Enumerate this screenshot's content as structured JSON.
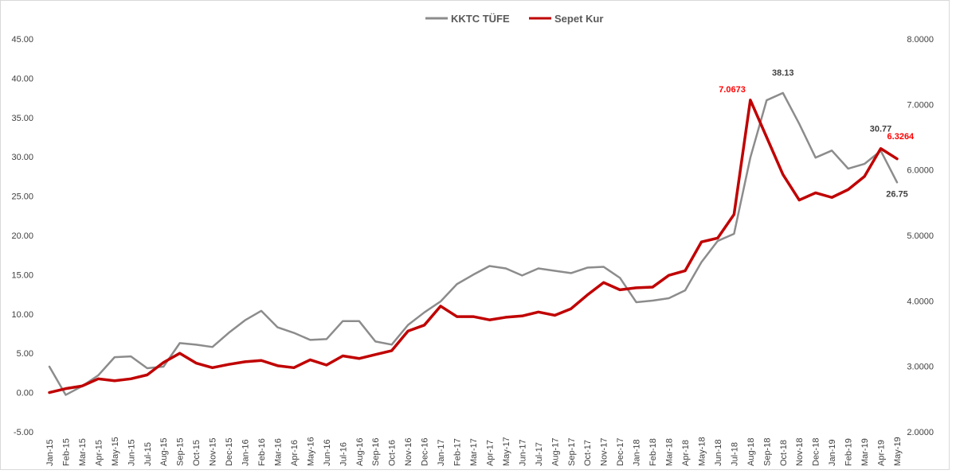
{
  "chart_data": {
    "type": "line",
    "title": "",
    "legend": {
      "position": "top-center",
      "entries": [
        "KKTC TÜFE",
        "Sepet Kur"
      ]
    },
    "categories": [
      "Jan-15",
      "Feb-15",
      "Mar-15",
      "Apr-15",
      "May-15",
      "Jun-15",
      "Jul-15",
      "Aug-15",
      "Sep-15",
      "Oct-15",
      "Nov-15",
      "Dec-15",
      "Jan-16",
      "Feb-16",
      "Mar-16",
      "Apr-16",
      "May-16",
      "Jun-16",
      "Jul-16",
      "Aug-16",
      "Sep-16",
      "Oct-16",
      "Nov-16",
      "Dec-16",
      "Jan-17",
      "Feb-17",
      "Mar-17",
      "Apr-17",
      "May-17",
      "Jun-17",
      "Jul-17",
      "Aug-17",
      "Sep-17",
      "Oct-17",
      "Nov-17",
      "Dec-17",
      "Jan-18",
      "Feb-18",
      "Mar-18",
      "Apr-18",
      "May-18",
      "Jun-18",
      "Jul-18",
      "Aug-18",
      "Sep-18",
      "Oct-18",
      "Nov-18",
      "Dec-18",
      "Jan-19",
      "Feb-19",
      "Mar-19",
      "Apr-19",
      "May-19"
    ],
    "left_axis": {
      "ylim": [
        -5,
        45
      ],
      "ticks": [
        "-5.00",
        "0.00",
        "5.00",
        "10.00",
        "15.00",
        "20.00",
        "25.00",
        "30.00",
        "35.00",
        "40.00",
        "45.00"
      ]
    },
    "right_axis": {
      "ylim": [
        2.0,
        8.0
      ],
      "ticks": [
        "2.0000",
        "3.0000",
        "4.0000",
        "5.0000",
        "6.0000",
        "7.0000",
        "8.0000"
      ]
    },
    "grid": false,
    "series": [
      {
        "name": "KKTC TÜFE",
        "axis": "left",
        "color": "#8c8c8c",
        "values": [
          3.3,
          -0.3,
          0.8,
          2.2,
          4.5,
          4.6,
          3.1,
          3.3,
          6.3,
          6.1,
          5.8,
          7.6,
          9.2,
          10.4,
          8.3,
          7.6,
          6.7,
          6.8,
          9.1,
          9.1,
          6.5,
          6.1,
          8.6,
          10.2,
          11.6,
          13.8,
          15.0,
          16.1,
          15.8,
          14.9,
          15.8,
          15.5,
          15.2,
          15.9,
          16.0,
          14.6,
          11.5,
          11.7,
          12.0,
          13.0,
          16.6,
          19.3,
          20.2,
          29.9,
          37.2,
          38.13,
          34.2,
          29.9,
          30.8,
          28.5,
          29.1,
          30.77,
          26.75
        ]
      },
      {
        "name": "Sepet Kur",
        "axis": "right",
        "color": "#c00000",
        "values": [
          2.6,
          2.66,
          2.7,
          2.81,
          2.78,
          2.81,
          2.87,
          3.06,
          3.2,
          3.05,
          2.98,
          3.03,
          3.07,
          3.09,
          3.01,
          2.98,
          3.1,
          3.02,
          3.16,
          3.12,
          3.18,
          3.24,
          3.54,
          3.63,
          3.92,
          3.76,
          3.76,
          3.71,
          3.75,
          3.77,
          3.83,
          3.78,
          3.88,
          4.09,
          4.28,
          4.17,
          4.2,
          4.21,
          4.39,
          4.46,
          4.9,
          4.96,
          5.32,
          7.0673,
          6.5,
          5.93,
          5.54,
          5.65,
          5.58,
          5.7,
          5.9,
          6.3264,
          6.17
        ]
      }
    ],
    "annotations": [
      {
        "series": "Sepet Kur",
        "category": "Aug-18",
        "text": "7.0673",
        "color": "#ff0000"
      },
      {
        "series": "KKTC TÜFE",
        "category": "Oct-18",
        "text": "38.13",
        "color": "#404040"
      },
      {
        "series": "KKTC TÜFE",
        "category": "Apr-19",
        "text": "30.77",
        "color": "#404040"
      },
      {
        "series": "Sepet Kur",
        "category": "Apr-19",
        "text": "6.3264",
        "color": "#ff0000"
      },
      {
        "series": "KKTC TÜFE",
        "category": "May-19",
        "text": "26.75",
        "color": "#404040"
      }
    ]
  }
}
